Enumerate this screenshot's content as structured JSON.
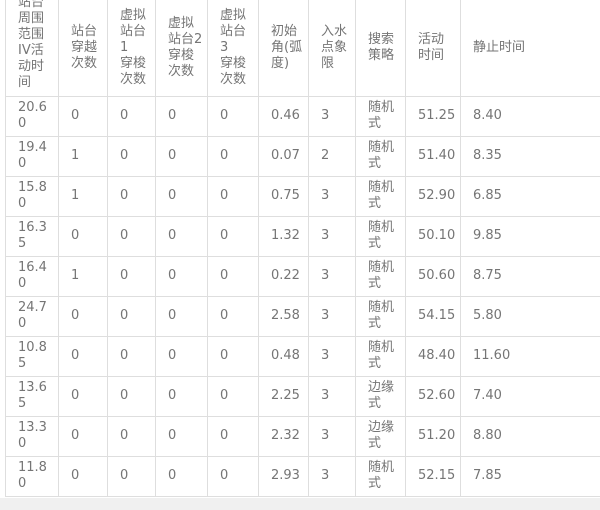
{
  "table": {
    "headers": [
      "站台\n周围\n范围\nIV活\n动时\n间",
      "站台\n穿越\n次数",
      "虚拟\n站台1\n穿梭\n次数",
      "虚拟\n站台2\n穿梭\n次数",
      "虚拟\n站台3\n穿梭\n次数",
      "初始\n角(弧\n度)",
      "入水\n点象\n限",
      "搜索\n策略",
      "活动\n时间",
      "静止时间"
    ],
    "rows": [
      [
        "20.60",
        "0",
        "0",
        "0",
        "0",
        "0.46",
        "3",
        "随机式",
        "51.25",
        "8.40"
      ],
      [
        "19.40",
        "1",
        "0",
        "0",
        "0",
        "0.07",
        "2",
        "随机式",
        "51.40",
        "8.35"
      ],
      [
        "15.80",
        "1",
        "0",
        "0",
        "0",
        "0.75",
        "3",
        "随机式",
        "52.90",
        "6.85"
      ],
      [
        "16.35",
        "0",
        "0",
        "0",
        "0",
        "1.32",
        "3",
        "随机式",
        "50.10",
        "9.85"
      ],
      [
        "16.40",
        "1",
        "0",
        "0",
        "0",
        "0.22",
        "3",
        "随机式",
        "50.60",
        "8.75"
      ],
      [
        "24.70",
        "0",
        "0",
        "0",
        "0",
        "2.58",
        "3",
        "随机式",
        "54.15",
        "5.80"
      ],
      [
        "10.85",
        "0",
        "0",
        "0",
        "0",
        "0.48",
        "3",
        "随机式",
        "48.40",
        "11.60"
      ],
      [
        "13.65",
        "0",
        "0",
        "0",
        "0",
        "2.25",
        "3",
        "边缘式",
        "52.60",
        "7.40"
      ],
      [
        "13.30",
        "0",
        "0",
        "0",
        "0",
        "2.32",
        "3",
        "边缘式",
        "51.20",
        "8.80"
      ],
      [
        "11.80",
        "0",
        "0",
        "0",
        "0",
        "2.93",
        "3",
        "随机式",
        "52.15",
        "7.85"
      ]
    ]
  },
  "colors": {
    "text": "#757575",
    "border": "#dedede",
    "background": "#ffffff",
    "bottom_strip": "#f0f0f0"
  }
}
